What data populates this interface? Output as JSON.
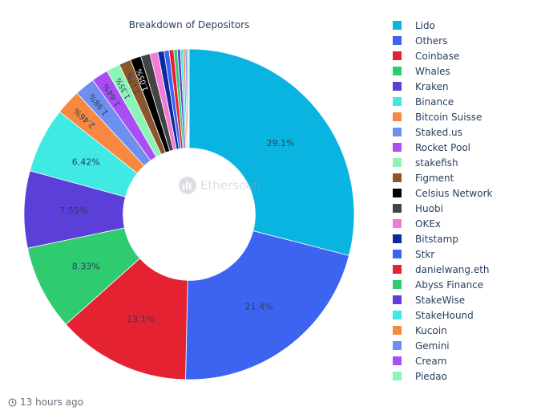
{
  "chart_data": {
    "type": "pie",
    "title": "Breakdown of Depositors",
    "hole": 0.4,
    "start": "12 o'clock, clockwise",
    "labels": [
      "Lido",
      "Others",
      "Coinbase",
      "Whales",
      "Kraken",
      "Binance",
      "Bitcoin Suisse",
      "Staked.us",
      "Rocket Pool",
      "stakefish",
      "Figment",
      "Celsius Network",
      "Huobi",
      "OKEx",
      "Bitstamp",
      "Stkr",
      "danielwang.eth",
      "Abyss Finance",
      "StakeWise",
      "StakeHound",
      "Kucoin",
      "Gemini",
      "Cream",
      "Piedao"
    ],
    "values": [
      29.1,
      21.4,
      13.1,
      8.33,
      7.55,
      6.42,
      2.46,
      1.98,
      1.64,
      1.35,
      1.17,
      1.05,
      0.92,
      0.78,
      0.6,
      0.5,
      0.45,
      0.35,
      0.3,
      0.25,
      0.2,
      0.18,
      0.12,
      0.1
    ],
    "slice_labels": [
      "29.1%",
      "21.4%",
      "13.1%",
      "8.33%",
      "7.55%",
      "6.42%",
      "2.46%",
      "1.98%",
      "1.64%",
      "1.35%",
      "1.17%",
      "1.05%",
      "",
      "",
      "",
      "",
      "",
      "",
      "",
      "",
      "",
      "",
      "",
      ""
    ],
    "colors": [
      "#0ab4e1",
      "#3d64f0",
      "#e52232",
      "#2ecc6f",
      "#5b3fd8",
      "#3fe9e4",
      "#f6883f",
      "#6e8ef0",
      "#a94ef5",
      "#8af5b4",
      "#8b572a",
      "#000000",
      "#444444",
      "#f47ad8",
      "#0a2b9c",
      "#3d64f0",
      "#e52232",
      "#2ecc6f",
      "#5b3fd8",
      "#3fe9e4",
      "#f6883f",
      "#6e8ef0",
      "#a94ef5",
      "#8af5b4"
    ],
    "legend_position": "right"
  },
  "watermark": "Etherscan",
  "footer": {
    "time_icon": "clock-icon",
    "timestamp": "13 hours ago"
  }
}
